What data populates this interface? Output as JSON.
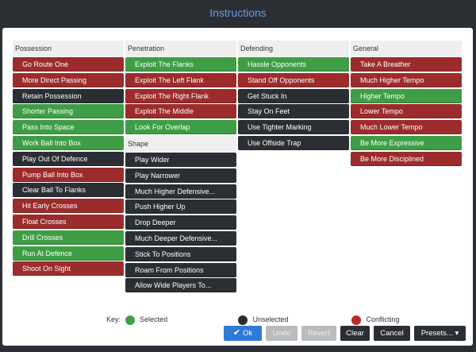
{
  "window": {
    "title": "Instructions"
  },
  "columns": {
    "possession": {
      "header": "Possession",
      "items": [
        {
          "label": "Go Route One",
          "state": "conflicting"
        },
        {
          "label": "More Direct Passing",
          "state": "conflicting"
        },
        {
          "label": "Retain Possession",
          "state": "unselected"
        },
        {
          "label": "Shorter Passing",
          "state": "selected"
        },
        {
          "label": "Pass Into Space",
          "state": "selected"
        },
        {
          "label": "Work Ball Into Box",
          "state": "selected"
        },
        {
          "label": "Play Out Of Defence",
          "state": "unselected"
        },
        {
          "label": "Pump Ball Into Box",
          "state": "conflicting"
        },
        {
          "label": "Clear Ball To Flanks",
          "state": "unselected"
        },
        {
          "label": "Hit Early Crosses",
          "state": "conflicting"
        },
        {
          "label": "Float Crosses",
          "state": "conflicting"
        },
        {
          "label": "Drill Crosses",
          "state": "selected"
        },
        {
          "label": "Run At Defence",
          "state": "selected"
        },
        {
          "label": "Shoot On Sight",
          "state": "conflicting"
        }
      ]
    },
    "penetration": {
      "header": "Penetration",
      "items": [
        {
          "label": "Exploit The Flanks",
          "state": "selected"
        },
        {
          "label": "Exploit The Left Flank",
          "state": "conflicting"
        },
        {
          "label": "Exploit The Right Flank",
          "state": "conflicting"
        },
        {
          "label": "Exploit The Middle",
          "state": "conflicting"
        },
        {
          "label": "Look For Overlap",
          "state": "selected"
        }
      ]
    },
    "shape": {
      "header": "Shape",
      "items": [
        {
          "label": "Play Wider",
          "state": "unselected"
        },
        {
          "label": "Play Narrower",
          "state": "unselected"
        },
        {
          "label": "Much Higher Defensive...",
          "state": "unselected"
        },
        {
          "label": "Push Higher Up",
          "state": "unselected"
        },
        {
          "label": "Drop Deeper",
          "state": "unselected"
        },
        {
          "label": "Much Deeper Defensive...",
          "state": "unselected"
        },
        {
          "label": "Stick To Positions",
          "state": "unselected"
        },
        {
          "label": "Roam From Positions",
          "state": "unselected"
        },
        {
          "label": "Allow Wide Players To...",
          "state": "unselected"
        }
      ]
    },
    "defending": {
      "header": "Defending",
      "items": [
        {
          "label": "Hassle Opponents",
          "state": "selected"
        },
        {
          "label": "Stand Off Opponents",
          "state": "conflicting"
        },
        {
          "label": "Get Stuck In",
          "state": "unselected"
        },
        {
          "label": "Stay On Feet",
          "state": "unselected"
        },
        {
          "label": "Use Tighter Marking",
          "state": "unselected"
        },
        {
          "label": "Use Offside Trap",
          "state": "unselected"
        }
      ]
    },
    "general": {
      "header": "General",
      "items": [
        {
          "label": "Take A Breather",
          "state": "conflicting"
        },
        {
          "label": "Much Higher Tempo",
          "state": "conflicting"
        },
        {
          "label": "Higher Tempo",
          "state": "selected"
        },
        {
          "label": "Lower Tempo",
          "state": "conflicting"
        },
        {
          "label": "Much Lower Tempo",
          "state": "conflicting"
        },
        {
          "label": "Be More Expressive",
          "state": "selected"
        },
        {
          "label": "Be More Disciplined",
          "state": "conflicting"
        }
      ]
    }
  },
  "key": {
    "label": "Key:",
    "selected": "Selected",
    "unselected": "Unselected",
    "conflicting": "Conflicting"
  },
  "buttons": {
    "ok": "Ok",
    "undo": "Undo",
    "revert": "Revert",
    "clear": "Clear",
    "cancel": "Cancel",
    "presets": "Presets...",
    "presets_caret": "▾",
    "ok_check": "✔"
  },
  "colors": {
    "selected": "#3f9e45",
    "unselected": "#2b2e33",
    "conflicting": "#9c2c2c",
    "title": "#5f9ee6",
    "ok_button": "#2f7ad6"
  }
}
